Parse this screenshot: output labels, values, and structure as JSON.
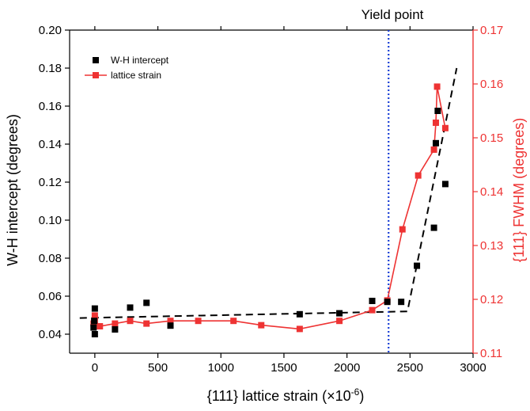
{
  "chart_data": {
    "type": "scatter",
    "annotation": "Yield point",
    "annotation_x": 2330,
    "x_axis": {
      "label_main": "{111} lattice strain (×10",
      "label_sup": "-6",
      "label_end": ")",
      "range": [
        -200,
        3000
      ],
      "ticks": [
        0,
        500,
        1000,
        1500,
        2000,
        2500,
        3000
      ],
      "tick_labels": [
        "0",
        "500",
        "1000",
        "1500",
        "2000",
        "2500",
        "3000"
      ]
    },
    "y_left_axis": {
      "label": "W-H intercept (degrees)",
      "range": [
        0.03,
        0.2
      ],
      "ticks": [
        0.04,
        0.06,
        0.08,
        0.1,
        0.12,
        0.14,
        0.16,
        0.18,
        0.2
      ],
      "tick_labels": [
        "0.04",
        "0.06",
        "0.08",
        "0.10",
        "0.12",
        "0.14",
        "0.16",
        "0.18",
        "0.20"
      ],
      "color": "#000000"
    },
    "y_right_axis": {
      "label": "{111} FWHM (degrees)",
      "range": [
        0.11,
        0.17
      ],
      "ticks": [
        0.11,
        0.12,
        0.13,
        0.14,
        0.15,
        0.16,
        0.17
      ],
      "tick_labels": [
        "0.11",
        "0.12",
        "0.13",
        "0.14",
        "0.15",
        "0.16",
        "0.17"
      ],
      "color": "#ee3333"
    },
    "legend_position": "top-left",
    "series": [
      {
        "name": "W-H intercept",
        "axis": "left",
        "style": "scatter",
        "marker": "square",
        "color": "#000000",
        "points": [
          {
            "x": -10,
            "y": 0.0435
          },
          {
            "x": -5,
            "y": 0.047
          },
          {
            "x": 0,
            "y": 0.04
          },
          {
            "x": 0,
            "y": 0.0535
          },
          {
            "x": 160,
            "y": 0.0425
          },
          {
            "x": 280,
            "y": 0.054
          },
          {
            "x": 410,
            "y": 0.0565
          },
          {
            "x": 600,
            "y": 0.0445
          },
          {
            "x": 1625,
            "y": 0.0505
          },
          {
            "x": 1940,
            "y": 0.051
          },
          {
            "x": 2200,
            "y": 0.0575
          },
          {
            "x": 2320,
            "y": 0.057
          },
          {
            "x": 2430,
            "y": 0.057
          },
          {
            "x": 2555,
            "y": 0.076
          },
          {
            "x": 2690,
            "y": 0.096
          },
          {
            "x": 2705,
            "y": 0.1405
          },
          {
            "x": 2720,
            "y": 0.1575
          },
          {
            "x": 2780,
            "y": 0.119
          }
        ]
      },
      {
        "name": "lattice strain",
        "axis": "right",
        "style": "line+marker",
        "marker": "square",
        "color": "#ee3333",
        "points": [
          {
            "x": 0,
            "y": 0.117
          },
          {
            "x": -10,
            "y": 0.1155
          },
          {
            "x": 0,
            "y": 0.1162
          },
          {
            "x": 40,
            "y": 0.115
          },
          {
            "x": 160,
            "y": 0.1155
          },
          {
            "x": 280,
            "y": 0.116
          },
          {
            "x": 410,
            "y": 0.1155
          },
          {
            "x": 600,
            "y": 0.116
          },
          {
            "x": 820,
            "y": 0.116
          },
          {
            "x": 1100,
            "y": 0.116
          },
          {
            "x": 1320,
            "y": 0.1152
          },
          {
            "x": 1625,
            "y": 0.1145
          },
          {
            "x": 1940,
            "y": 0.116
          },
          {
            "x": 2200,
            "y": 0.118
          },
          {
            "x": 2320,
            "y": 0.1198
          },
          {
            "x": 2440,
            "y": 0.133
          },
          {
            "x": 2565,
            "y": 0.143
          },
          {
            "x": 2690,
            "y": 0.1478
          },
          {
            "x": 2705,
            "y": 0.1528
          },
          {
            "x": 2715,
            "y": 0.1595
          },
          {
            "x": 2780,
            "y": 0.1518
          }
        ]
      }
    ],
    "trend_line": {
      "axis": "left",
      "style": "dashed",
      "color": "#000000",
      "points": [
        {
          "x": -120,
          "y": 0.0485
        },
        {
          "x": 2480,
          "y": 0.052
        },
        {
          "x": 2870,
          "y": 0.18
        }
      ]
    }
  }
}
